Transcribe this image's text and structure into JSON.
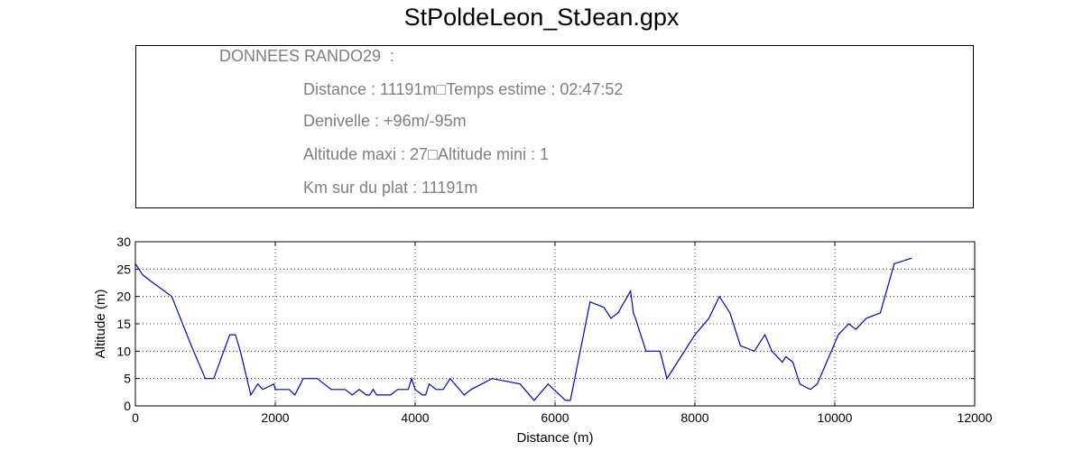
{
  "page_title": "StPoldeLeon_StJean.gpx",
  "info_box": {
    "heading": "DONNEES RANDO29  :",
    "distance_line": "Distance : 11191m□Temps estime : 02:47:52",
    "denivelle_line": "Denivelle : +96m/-95m",
    "altitude_line": "Altitude maxi : 27□Altitude mini : 1",
    "km_plat_line": "Km sur du plat : 11191m"
  },
  "chart_data": {
    "type": "line",
    "title": "",
    "xlabel": "Distance (m)",
    "ylabel": "Altitude (m)",
    "xlim": [
      0,
      12000
    ],
    "ylim": [
      0,
      30
    ],
    "xticks": [
      "0",
      "2000",
      "4000",
      "6000",
      "8000",
      "10000",
      "12000"
    ],
    "yticks": [
      "0",
      "5",
      "10",
      "15",
      "20",
      "25",
      "30"
    ],
    "grid": true,
    "line_color": "#0000cc",
    "series": [
      {
        "x": [
          0,
          100,
          200,
          520,
          800,
          1000,
          1120,
          1350,
          1430,
          1500,
          1650,
          1750,
          1820,
          1980,
          2000,
          2080,
          2200,
          2280,
          2400,
          2600,
          2800,
          3000,
          3100,
          3200,
          3300,
          3350,
          3400,
          3450,
          3500,
          3650,
          3750,
          3900,
          3950,
          4000,
          4100,
          4150,
          4200,
          4300,
          4400,
          4500,
          4700,
          4800,
          5100,
          5500,
          5700,
          5900,
          6150,
          6220,
          6500,
          6700,
          6800,
          6900,
          7080,
          7120,
          7150,
          7200,
          7300,
          7500,
          7600,
          7700,
          8000,
          8200,
          8350,
          8500,
          8650,
          8850,
          9000,
          9100,
          9250,
          9300,
          9400,
          9500,
          9650,
          9750,
          10050,
          10200,
          10300,
          10450,
          10650,
          10850,
          11100
        ],
        "y": [
          26,
          24,
          23,
          20,
          11,
          5,
          5,
          13,
          13,
          10,
          2,
          4,
          3,
          4,
          3,
          3,
          3,
          2,
          5,
          5,
          3,
          3,
          2,
          3,
          2,
          2,
          3,
          2,
          2,
          2,
          3,
          3,
          5,
          3,
          2,
          2,
          4,
          3,
          3,
          5,
          2,
          3,
          5,
          4,
          1,
          4,
          1,
          1,
          19,
          18,
          16,
          17,
          21,
          17,
          16,
          14,
          10,
          10,
          5,
          7,
          13,
          16,
          20,
          17,
          11,
          10,
          13,
          10,
          8,
          9,
          8,
          4,
          3,
          4,
          13,
          15,
          14,
          16,
          17,
          26,
          27
        ]
      }
    ]
  }
}
